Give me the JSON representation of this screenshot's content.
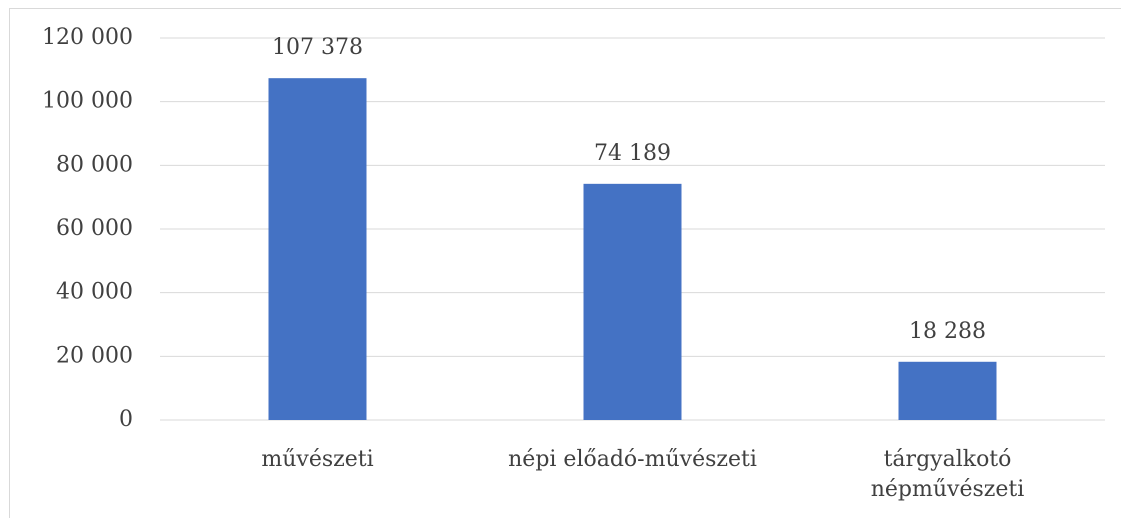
{
  "chart_data": {
    "type": "bar",
    "categories": [
      "művészeti",
      "népi előadó-művészeti",
      "tárgyalkotó népművészeti"
    ],
    "values": [
      107378,
      74189,
      18288
    ],
    "value_labels": [
      "107 378",
      "74 189",
      "18 288"
    ],
    "color": "#4472c4",
    "ylim": [
      0,
      120000
    ],
    "yticks": [
      {
        "value": 0,
        "label": "0"
      },
      {
        "value": 20000,
        "label": "20 000"
      },
      {
        "value": 40000,
        "label": "40 000"
      },
      {
        "value": 60000,
        "label": "60 000"
      },
      {
        "value": 80000,
        "label": "80 000"
      },
      {
        "value": 100000,
        "label": "100 000"
      },
      {
        "value": 120000,
        "label": "120 000"
      }
    ],
    "grid": true
  }
}
